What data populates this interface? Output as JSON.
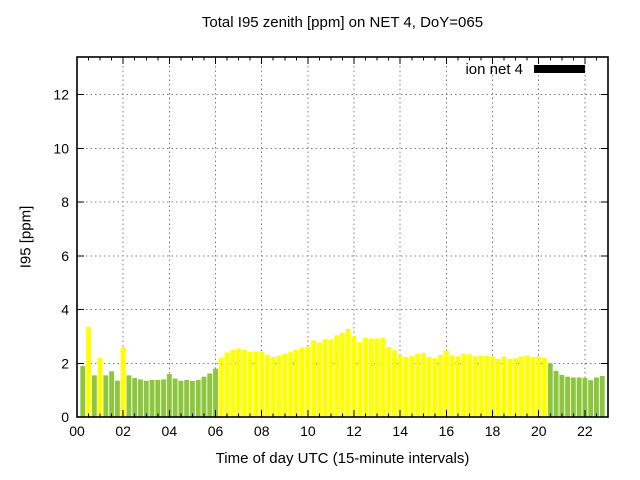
{
  "chart_data": {
    "type": "bar",
    "title": "Total I95 zenith [ppm] on NET 4, DoY=065",
    "xlabel": "Time of day UTC (15-minute intervals)",
    "ylabel": "I95 [ppm]",
    "legend_position": "top-right-inside",
    "grid": true,
    "interval_minutes": 15,
    "xlim_hours": [
      0,
      23
    ],
    "ylim": [
      0,
      13.4
    ],
    "x_tick_hours": [
      0,
      2,
      4,
      6,
      8,
      10,
      12,
      14,
      16,
      18,
      20,
      22
    ],
    "x_tick_labels": [
      "00",
      "02",
      "04",
      "06",
      "08",
      "10",
      "12",
      "14",
      "16",
      "18",
      "20",
      "22"
    ],
    "x_minor_tick_step_hours": 0.5,
    "y_tick_values": [
      0,
      2,
      4,
      6,
      8,
      10,
      12
    ],
    "y_tick_labels": [
      "0",
      "2",
      "4",
      "6",
      "8",
      "10",
      "12"
    ],
    "colors": {
      "g": "#8CC63E",
      "y": "#FFFF00"
    },
    "legend_swatch_color": "#000000",
    "point_format": [
      "time_utc",
      "i95_ppm",
      "color_key"
    ],
    "series": [
      {
        "name": "ion net 4",
        "points": [
          [
            "00:15",
            1.9,
            "g"
          ],
          [
            "00:30",
            3.35,
            "y"
          ],
          [
            "00:45",
            1.55,
            "g"
          ],
          [
            "01:00",
            2.2,
            "y"
          ],
          [
            "01:15",
            1.55,
            "g"
          ],
          [
            "01:30",
            1.7,
            "g"
          ],
          [
            "01:45",
            1.35,
            "g"
          ],
          [
            "02:00",
            2.6,
            "y"
          ],
          [
            "02:15",
            1.55,
            "g"
          ],
          [
            "02:30",
            1.45,
            "g"
          ],
          [
            "02:45",
            1.4,
            "g"
          ],
          [
            "03:00",
            1.35,
            "g"
          ],
          [
            "03:15",
            1.38,
            "g"
          ],
          [
            "03:30",
            1.38,
            "g"
          ],
          [
            "03:45",
            1.4,
            "g"
          ],
          [
            "04:00",
            1.6,
            "g"
          ],
          [
            "04:15",
            1.43,
            "g"
          ],
          [
            "04:30",
            1.35,
            "g"
          ],
          [
            "04:45",
            1.38,
            "g"
          ],
          [
            "05:00",
            1.34,
            "g"
          ],
          [
            "05:15",
            1.38,
            "g"
          ],
          [
            "05:30",
            1.5,
            "g"
          ],
          [
            "05:45",
            1.62,
            "g"
          ],
          [
            "06:00",
            1.8,
            "g"
          ],
          [
            "06:15",
            2.2,
            "y"
          ],
          [
            "06:30",
            2.4,
            "y"
          ],
          [
            "06:45",
            2.5,
            "y"
          ],
          [
            "07:00",
            2.55,
            "y"
          ],
          [
            "07:15",
            2.5,
            "y"
          ],
          [
            "07:30",
            2.42,
            "y"
          ],
          [
            "07:45",
            2.44,
            "y"
          ],
          [
            "08:00",
            2.44,
            "y"
          ],
          [
            "08:15",
            2.31,
            "y"
          ],
          [
            "08:30",
            2.23,
            "y"
          ],
          [
            "08:45",
            2.28,
            "y"
          ],
          [
            "09:00",
            2.35,
            "y"
          ],
          [
            "09:15",
            2.41,
            "y"
          ],
          [
            "09:30",
            2.5,
            "y"
          ],
          [
            "09:45",
            2.58,
            "y"
          ],
          [
            "10:00",
            2.62,
            "y"
          ],
          [
            "10:15",
            2.85,
            "y"
          ],
          [
            "10:30",
            2.77,
            "y"
          ],
          [
            "10:45",
            2.9,
            "y"
          ],
          [
            "11:00",
            2.89,
            "y"
          ],
          [
            "11:15",
            3.04,
            "y"
          ],
          [
            "11:30",
            3.14,
            "y"
          ],
          [
            "11:45",
            3.28,
            "y"
          ],
          [
            "12:00",
            3.0,
            "y"
          ],
          [
            "12:15",
            2.78,
            "y"
          ],
          [
            "12:30",
            2.95,
            "y"
          ],
          [
            "12:45",
            2.92,
            "y"
          ],
          [
            "13:00",
            2.92,
            "y"
          ],
          [
            "13:15",
            2.95,
            "y"
          ],
          [
            "13:30",
            2.6,
            "y"
          ],
          [
            "13:45",
            2.48,
            "y"
          ],
          [
            "14:00",
            2.3,
            "y"
          ],
          [
            "14:15",
            2.23,
            "y"
          ],
          [
            "14:30",
            2.26,
            "y"
          ],
          [
            "14:45",
            2.35,
            "y"
          ],
          [
            "15:00",
            2.38,
            "y"
          ],
          [
            "15:15",
            2.23,
            "y"
          ],
          [
            "15:30",
            2.19,
            "y"
          ],
          [
            "15:45",
            2.31,
            "y"
          ],
          [
            "16:00",
            2.48,
            "y"
          ],
          [
            "16:15",
            2.29,
            "y"
          ],
          [
            "16:30",
            2.25,
            "y"
          ],
          [
            "16:45",
            2.35,
            "y"
          ],
          [
            "17:00",
            2.33,
            "y"
          ],
          [
            "17:15",
            2.25,
            "y"
          ],
          [
            "17:30",
            2.29,
            "y"
          ],
          [
            "17:45",
            2.29,
            "y"
          ],
          [
            "18:00",
            2.25,
            "y"
          ],
          [
            "18:15",
            2.16,
            "y"
          ],
          [
            "18:30",
            2.25,
            "y"
          ],
          [
            "18:45",
            2.16,
            "y"
          ],
          [
            "19:00",
            2.19,
            "y"
          ],
          [
            "19:15",
            2.25,
            "y"
          ],
          [
            "19:30",
            2.29,
            "y"
          ],
          [
            "19:45",
            2.23,
            "y"
          ],
          [
            "20:00",
            2.25,
            "y"
          ],
          [
            "20:15",
            2.2,
            "y"
          ],
          [
            "20:30",
            2.0,
            "g"
          ],
          [
            "20:45",
            1.72,
            "g"
          ],
          [
            "21:00",
            1.57,
            "g"
          ],
          [
            "21:15",
            1.5,
            "g"
          ],
          [
            "21:30",
            1.47,
            "g"
          ],
          [
            "21:45",
            1.47,
            "g"
          ],
          [
            "22:00",
            1.45,
            "g"
          ],
          [
            "22:15",
            1.37,
            "g"
          ],
          [
            "22:30",
            1.47,
            "g"
          ],
          [
            "22:45",
            1.53,
            "g"
          ]
        ]
      }
    ]
  }
}
